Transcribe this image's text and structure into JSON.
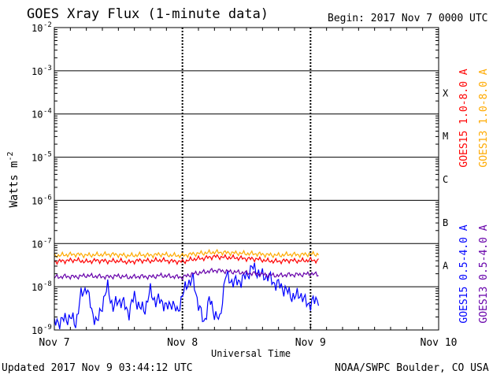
{
  "page": {
    "title": "GOES Xray Flux (1-minute data)",
    "begin": "Begin:  2017 Nov 7 0000 UTC",
    "updated": "Updated 2017 Nov  9 03:44:12 UTC",
    "credit": "NOAA/SWPC Boulder, CO USA"
  },
  "chart_data": {
    "type": "line",
    "title": "GOES Xray Flux (1-minute data)",
    "xlabel": "Universal Time",
    "ylabel_main": "Watts m",
    "ylabel_exp": "-2",
    "yscale": "log",
    "ylim_exp": [
      -9,
      -2
    ],
    "xlim_hours": [
      0,
      72
    ],
    "y_ticks": [
      {
        "exp": -9,
        "label": "10",
        "sup": "-9"
      },
      {
        "exp": -8,
        "label": "10",
        "sup": "-8"
      },
      {
        "exp": -7,
        "label": "10",
        "sup": "-7"
      },
      {
        "exp": -6,
        "label": "10",
        "sup": "-6"
      },
      {
        "exp": -5,
        "label": "10",
        "sup": "-5"
      },
      {
        "exp": -4,
        "label": "10",
        "sup": "-4"
      },
      {
        "exp": -3,
        "label": "10",
        "sup": "-3"
      },
      {
        "exp": -2,
        "label": "10",
        "sup": "-2"
      }
    ],
    "x_ticks": [
      {
        "hour": 0,
        "label": "Nov 7"
      },
      {
        "hour": 24,
        "label": "Nov 8"
      },
      {
        "hour": 48,
        "label": "Nov 9"
      },
      {
        "hour": 72,
        "label": "Nov 10"
      }
    ],
    "flare_classes": [
      {
        "label": "A",
        "exp": -7.5
      },
      {
        "label": "B",
        "exp": -6.5
      },
      {
        "label": "C",
        "exp": -5.5
      },
      {
        "label": "M",
        "exp": -4.5
      },
      {
        "label": "X",
        "exp": -3.5
      }
    ],
    "series": [
      {
        "name": "GOES15 1.0-8.0 A",
        "color": "#ff0000",
        "hours": [
          0,
          2,
          4,
          6,
          8,
          10,
          12,
          14,
          16,
          18,
          20,
          22,
          24,
          26,
          28,
          30,
          32,
          34,
          36,
          38,
          40,
          42,
          44,
          46,
          48,
          49.7
        ],
        "log_flux": [
          -7.42,
          -7.4,
          -7.38,
          -7.42,
          -7.39,
          -7.41,
          -7.4,
          -7.43,
          -7.39,
          -7.4,
          -7.38,
          -7.41,
          -7.42,
          -7.36,
          -7.34,
          -7.3,
          -7.32,
          -7.33,
          -7.35,
          -7.36,
          -7.4,
          -7.41,
          -7.39,
          -7.4,
          -7.38,
          -7.4
        ]
      },
      {
        "name": "GOES13 1.0-8.0 A",
        "color": "#ffaa00",
        "hours": [
          0,
          2,
          4,
          6,
          8,
          10,
          12,
          14,
          16,
          18,
          20,
          22,
          24,
          26,
          28,
          30,
          32,
          34,
          36,
          38,
          40,
          42,
          44,
          46,
          48,
          49.7
        ],
        "log_flux": [
          -7.28,
          -7.26,
          -7.25,
          -7.27,
          -7.26,
          -7.25,
          -7.26,
          -7.28,
          -7.26,
          -7.27,
          -7.25,
          -7.27,
          -7.28,
          -7.24,
          -7.22,
          -7.2,
          -7.21,
          -7.22,
          -7.23,
          -7.24,
          -7.26,
          -7.27,
          -7.25,
          -7.26,
          -7.24,
          -7.25
        ]
      },
      {
        "name": "GOES15 0.5-4.0 A",
        "color": "#0000ff",
        "hours": [
          0,
          1,
          2,
          3,
          4,
          5,
          6,
          7,
          8,
          9,
          10,
          11,
          12,
          13,
          14,
          15,
          16,
          17,
          18,
          19,
          20,
          21,
          22,
          23,
          24,
          25,
          26,
          27,
          28,
          29,
          30,
          31,
          32,
          33,
          34,
          35,
          36,
          37,
          38,
          39,
          40,
          41,
          42,
          43,
          44,
          45,
          46,
          47,
          48,
          49,
          49.7
        ],
        "log_flux": [
          -8.85,
          -8.8,
          -8.75,
          -8.7,
          -8.85,
          -8.2,
          -8.0,
          -8.55,
          -8.85,
          -8.4,
          -8.0,
          -8.5,
          -8.3,
          -8.4,
          -8.6,
          -8.2,
          -8.5,
          -8.5,
          -8.1,
          -8.35,
          -8.3,
          -8.5,
          -8.35,
          -8.6,
          -8.2,
          -7.9,
          -7.85,
          -8.4,
          -8.85,
          -8.3,
          -8.6,
          -8.8,
          -7.75,
          -7.85,
          -7.9,
          -7.85,
          -7.75,
          -7.55,
          -7.65,
          -7.75,
          -7.75,
          -7.9,
          -7.95,
          -8.05,
          -8.15,
          -8.25,
          -8.15,
          -8.35,
          -8.4,
          -8.3,
          -8.25
        ]
      },
      {
        "name": "GOES13 0.5-4.0 A",
        "color": "#6600aa",
        "hours": [
          0,
          2,
          4,
          6,
          8,
          10,
          12,
          14,
          16,
          18,
          20,
          22,
          24,
          26,
          28,
          30,
          32,
          34,
          36,
          38,
          40,
          42,
          44,
          46,
          48,
          49.7
        ],
        "log_flux": [
          -7.78,
          -7.76,
          -7.77,
          -7.74,
          -7.76,
          -7.77,
          -7.75,
          -7.78,
          -7.76,
          -7.77,
          -7.74,
          -7.76,
          -7.78,
          -7.7,
          -7.66,
          -7.62,
          -7.64,
          -7.66,
          -7.68,
          -7.7,
          -7.73,
          -7.74,
          -7.72,
          -7.72,
          -7.7,
          -7.72
        ]
      }
    ]
  }
}
